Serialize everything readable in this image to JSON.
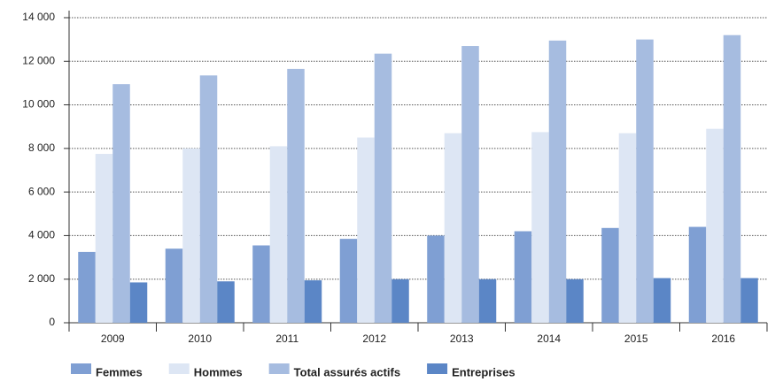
{
  "chart_data": {
    "type": "bar",
    "categories": [
      "2009",
      "2010",
      "2011",
      "2012",
      "2013",
      "2014",
      "2015",
      "2016"
    ],
    "series": [
      {
        "name": "Femmes",
        "color": "#7f9fd3",
        "values": [
          3250,
          3400,
          3550,
          3850,
          4000,
          4200,
          4350,
          4400
        ]
      },
      {
        "name": "Hommes",
        "color": "#dde6f4",
        "values": [
          7750,
          8000,
          8100,
          8500,
          8700,
          8750,
          8700,
          8900
        ]
      },
      {
        "name": "Total assurés actifs",
        "color": "#a6bce0",
        "values": [
          10950,
          11350,
          11650,
          12350,
          12700,
          12950,
          13000,
          13200
        ]
      },
      {
        "name": "Entreprises",
        "color": "#5b86c6",
        "values": [
          1850,
          1900,
          1950,
          2000,
          2000,
          2000,
          2050,
          2050
        ]
      }
    ],
    "ylim": [
      0,
      14000
    ],
    "yticks": [
      0,
      {
        "value": 2000,
        "label": "2 000"
      },
      {
        "value": 4000,
        "label": "4 000"
      },
      {
        "value": 6000,
        "label": "6 000"
      },
      {
        "value": 8000,
        "label": "8 000"
      },
      {
        "value": 10000,
        "label": "10 000"
      },
      {
        "value": 12000,
        "label": "12 000"
      },
      {
        "value": 14000,
        "label": "14 000"
      }
    ],
    "grid": true,
    "legend": "bottom"
  }
}
